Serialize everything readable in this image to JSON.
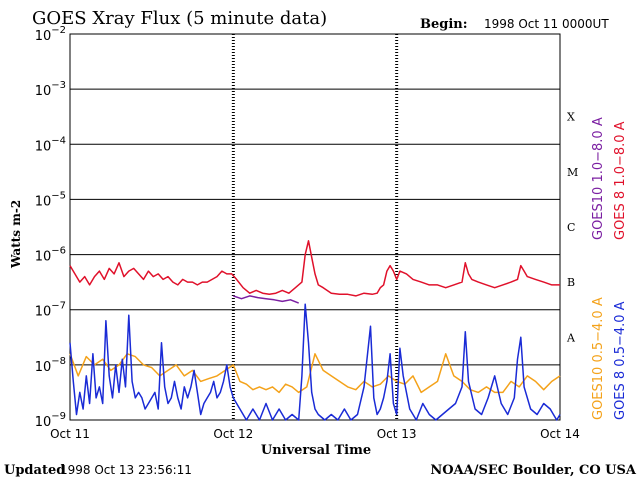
{
  "header": {
    "title": "GOES Xray Flux (5 minute data)",
    "begin_label": "Begin:",
    "begin_value": "1998 Oct 11 0000UT"
  },
  "footer": {
    "updated_label": "Updated",
    "updated_value": "1998 Oct 13 23:56:11",
    "credit": "NOAA/SEC Boulder, CO USA"
  },
  "colors": {
    "goes10_long": "#7b1fa2",
    "goes8_long": "#e0112b",
    "goes10_short": "#f4a21a",
    "goes8_short": "#1a2bd6",
    "grid": "#000000"
  },
  "chart_data": {
    "type": "line",
    "title": "GOES Xray Flux (5 minute data)",
    "xlabel": "Universal Time",
    "ylabel": "Watts m-2",
    "yscale": "log",
    "ylim": [
      1e-09,
      0.01
    ],
    "xlim": [
      0,
      3
    ],
    "x_ticks": [
      {
        "x": 0,
        "label": "Oct 11"
      },
      {
        "x": 1,
        "label": "Oct 12"
      },
      {
        "x": 2,
        "label": "Oct 13"
      },
      {
        "x": 3,
        "label": "Oct 14"
      }
    ],
    "y_ticks": [
      {
        "exp": -2,
        "base": "10",
        "power": "−2"
      },
      {
        "exp": -3,
        "base": "10",
        "power": "−3"
      },
      {
        "exp": -4,
        "base": "10",
        "power": "−4"
      },
      {
        "exp": -5,
        "base": "10",
        "power": "−5"
      },
      {
        "exp": -6,
        "base": "10",
        "power": "−6"
      },
      {
        "exp": -7,
        "base": "10",
        "power": "−7"
      },
      {
        "exp": -8,
        "base": "10",
        "power": "−8"
      },
      {
        "exp": -9,
        "base": "10",
        "power": "−9"
      }
    ],
    "flare_classes": [
      {
        "label": "X",
        "center_exp": -3.5
      },
      {
        "label": "M",
        "center_exp": -4.5
      },
      {
        "label": "C",
        "center_exp": -5.5
      },
      {
        "label": "B",
        "center_exp": -6.5
      },
      {
        "label": "A",
        "center_exp": -7.5
      }
    ],
    "grid": true,
    "legend": "right",
    "series": [
      {
        "name": "GOES10 1.0−8.0 A",
        "color": "#7b1fa2",
        "x": [
          1.0,
          1.05,
          1.1,
          1.15,
          1.2,
          1.25,
          1.3,
          1.35,
          1.4
        ],
        "log": [
          -6.75,
          -6.8,
          -6.75,
          -6.78,
          -6.8,
          -6.82,
          -6.85,
          -6.82,
          -6.88
        ]
      },
      {
        "name": "GOES 8 1.0−8.0 A",
        "color": "#e0112b",
        "x": [
          0.0,
          0.03,
          0.06,
          0.09,
          0.12,
          0.15,
          0.18,
          0.21,
          0.24,
          0.27,
          0.3,
          0.33,
          0.36,
          0.39,
          0.42,
          0.45,
          0.48,
          0.51,
          0.54,
          0.57,
          0.6,
          0.63,
          0.66,
          0.69,
          0.72,
          0.75,
          0.78,
          0.81,
          0.84,
          0.87,
          0.9,
          0.93,
          0.96,
          0.99,
          1.02,
          1.06,
          1.1,
          1.14,
          1.18,
          1.22,
          1.26,
          1.3,
          1.34,
          1.38,
          1.42,
          1.44,
          1.46,
          1.48,
          1.5,
          1.52,
          1.55,
          1.6,
          1.65,
          1.7,
          1.75,
          1.8,
          1.85,
          1.88,
          1.9,
          1.92,
          1.94,
          1.96,
          1.98,
          2.0,
          2.02,
          2.06,
          2.1,
          2.15,
          2.2,
          2.25,
          2.3,
          2.35,
          2.4,
          2.42,
          2.44,
          2.46,
          2.5,
          2.55,
          2.6,
          2.65,
          2.7,
          2.74,
          2.76,
          2.78,
          2.8,
          2.85,
          2.9,
          2.95,
          3.0
        ],
        "log": [
          -6.2,
          -6.35,
          -6.5,
          -6.4,
          -6.55,
          -6.4,
          -6.3,
          -6.45,
          -6.25,
          -6.35,
          -6.15,
          -6.4,
          -6.3,
          -6.25,
          -6.35,
          -6.45,
          -6.3,
          -6.4,
          -6.35,
          -6.45,
          -6.4,
          -6.5,
          -6.55,
          -6.45,
          -6.5,
          -6.5,
          -6.55,
          -6.5,
          -6.5,
          -6.45,
          -6.4,
          -6.3,
          -6.35,
          -6.35,
          -6.45,
          -6.6,
          -6.7,
          -6.65,
          -6.7,
          -6.72,
          -6.7,
          -6.65,
          -6.7,
          -6.6,
          -6.5,
          -6.0,
          -5.75,
          -6.05,
          -6.35,
          -6.55,
          -6.6,
          -6.7,
          -6.72,
          -6.72,
          -6.75,
          -6.7,
          -6.72,
          -6.7,
          -6.6,
          -6.55,
          -6.3,
          -6.2,
          -6.3,
          -6.45,
          -6.3,
          -6.35,
          -6.45,
          -6.5,
          -6.55,
          -6.55,
          -6.6,
          -6.55,
          -6.5,
          -6.15,
          -6.35,
          -6.45,
          -6.5,
          -6.55,
          -6.6,
          -6.55,
          -6.5,
          -6.45,
          -6.2,
          -6.3,
          -6.4,
          -6.45,
          -6.5,
          -6.55,
          -6.55
        ]
      },
      {
        "name": "GOES10 0.5−4.0 A",
        "color": "#f4a21a",
        "x": [
          0.0,
          0.05,
          0.1,
          0.15,
          0.2,
          0.25,
          0.3,
          0.35,
          0.4,
          0.45,
          0.5,
          0.55,
          0.6,
          0.65,
          0.7,
          0.75,
          0.8,
          0.85,
          0.9,
          0.95,
          1.0,
          1.04,
          1.08,
          1.12,
          1.16,
          1.2,
          1.24,
          1.28,
          1.32,
          1.36,
          1.4,
          1.45,
          1.5,
          1.55,
          1.6,
          1.65,
          1.7,
          1.75,
          1.8,
          1.85,
          1.9,
          1.95,
          2.0,
          2.05,
          2.1,
          2.15,
          2.2,
          2.25,
          2.3,
          2.35,
          2.4,
          2.45,
          2.5,
          2.55,
          2.6,
          2.65,
          2.7,
          2.75,
          2.8,
          2.85,
          2.9,
          2.95,
          3.0
        ],
        "log": [
          -7.8,
          -8.2,
          -7.85,
          -8.0,
          -7.9,
          -8.1,
          -8.0,
          -7.8,
          -7.85,
          -8.0,
          -8.05,
          -8.2,
          -8.1,
          -8.0,
          -8.2,
          -8.1,
          -8.3,
          -8.25,
          -8.2,
          -8.1,
          -8.0,
          -8.3,
          -8.35,
          -8.45,
          -8.4,
          -8.45,
          -8.4,
          -8.5,
          -8.35,
          -8.4,
          -8.5,
          -8.4,
          -7.8,
          -8.1,
          -8.2,
          -8.3,
          -8.4,
          -8.45,
          -8.3,
          -8.4,
          -8.35,
          -8.2,
          -8.3,
          -8.35,
          -8.2,
          -8.5,
          -8.4,
          -8.3,
          -7.8,
          -8.2,
          -8.3,
          -8.45,
          -8.5,
          -8.4,
          -8.5,
          -8.5,
          -8.3,
          -8.4,
          -8.2,
          -8.3,
          -8.45,
          -8.3,
          -8.2
        ]
      },
      {
        "name": "GOES 8 0.5−4.0 A",
        "color": "#1a2bd6",
        "x": [
          0.0,
          0.02,
          0.04,
          0.06,
          0.08,
          0.1,
          0.12,
          0.14,
          0.16,
          0.18,
          0.2,
          0.22,
          0.24,
          0.26,
          0.28,
          0.3,
          0.32,
          0.34,
          0.36,
          0.38,
          0.4,
          0.42,
          0.44,
          0.46,
          0.48,
          0.5,
          0.52,
          0.54,
          0.56,
          0.58,
          0.6,
          0.62,
          0.64,
          0.66,
          0.68,
          0.7,
          0.72,
          0.74,
          0.76,
          0.78,
          0.8,
          0.82,
          0.84,
          0.86,
          0.88,
          0.9,
          0.92,
          0.94,
          0.96,
          0.98,
          1.0,
          1.04,
          1.08,
          1.12,
          1.16,
          1.2,
          1.24,
          1.28,
          1.32,
          1.36,
          1.4,
          1.42,
          1.44,
          1.46,
          1.48,
          1.5,
          1.52,
          1.56,
          1.6,
          1.64,
          1.68,
          1.72,
          1.76,
          1.8,
          1.84,
          1.86,
          1.88,
          1.9,
          1.92,
          1.94,
          1.96,
          1.98,
          2.0,
          2.02,
          2.04,
          2.08,
          2.12,
          2.16,
          2.2,
          2.24,
          2.28,
          2.32,
          2.36,
          2.4,
          2.42,
          2.44,
          2.48,
          2.52,
          2.56,
          2.6,
          2.64,
          2.68,
          2.72,
          2.74,
          2.76,
          2.78,
          2.82,
          2.86,
          2.9,
          2.94,
          2.98,
          3.0
        ],
        "log": [
          -7.6,
          -8.3,
          -8.9,
          -8.5,
          -8.8,
          -8.2,
          -8.7,
          -7.8,
          -8.6,
          -8.4,
          -8.7,
          -7.2,
          -8.2,
          -8.6,
          -8.0,
          -8.5,
          -7.9,
          -8.4,
          -7.1,
          -8.3,
          -8.6,
          -8.5,
          -8.6,
          -8.8,
          -8.7,
          -8.6,
          -8.5,
          -8.8,
          -7.6,
          -8.4,
          -8.7,
          -8.6,
          -8.3,
          -8.6,
          -8.8,
          -8.4,
          -8.6,
          -8.4,
          -8.1,
          -8.5,
          -8.9,
          -8.7,
          -8.6,
          -8.5,
          -8.3,
          -8.6,
          -8.5,
          -8.3,
          -8.0,
          -8.4,
          -8.6,
          -8.8,
          -9.0,
          -8.8,
          -9.0,
          -8.7,
          -9.0,
          -8.8,
          -9.0,
          -8.9,
          -9.0,
          -8.2,
          -6.9,
          -7.6,
          -8.5,
          -8.8,
          -8.9,
          -9.0,
          -8.9,
          -9.0,
          -8.8,
          -9.0,
          -8.9,
          -8.4,
          -7.3,
          -8.6,
          -8.9,
          -8.8,
          -8.6,
          -8.3,
          -7.8,
          -8.7,
          -8.9,
          -7.7,
          -8.2,
          -8.8,
          -9.0,
          -8.7,
          -8.9,
          -9.0,
          -8.9,
          -8.8,
          -8.7,
          -8.4,
          -7.4,
          -8.3,
          -8.8,
          -8.9,
          -8.6,
          -8.2,
          -8.7,
          -8.9,
          -8.6,
          -7.9,
          -7.5,
          -8.4,
          -8.8,
          -8.9,
          -8.7,
          -8.8,
          -9.0,
          -8.9
        ]
      }
    ]
  }
}
